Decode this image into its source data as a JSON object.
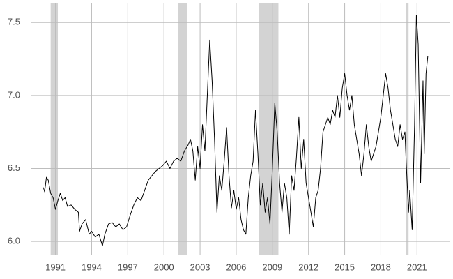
{
  "chart_data": {
    "type": "line",
    "color": "#000000",
    "grid": true,
    "shaded_periods": [
      [
        1990.6,
        1991.2
      ],
      [
        2001.2,
        2001.9
      ],
      [
        2007.9,
        2009.5
      ],
      [
        2020.1,
        2020.3
      ]
    ],
    "shade_color": "#d3d3d3",
    "xlim": [
      1989,
      2023.7
    ],
    "ylim": [
      5.91,
      7.63
    ],
    "xticks": [
      1991,
      1994,
      1997,
      2000,
      2003,
      2006,
      2009,
      2012,
      2015,
      2018,
      2021
    ],
    "yticks": [
      {
        "value": 6,
        "label": "6.0"
      },
      6.5,
      {
        "value": 7,
        "label": "7.0"
      },
      7.5
    ],
    "x": [
      1990.0,
      1990.1,
      1990.25,
      1990.4,
      1990.6,
      1990.8,
      1991.0,
      1991.2,
      1991.4,
      1991.6,
      1991.8,
      1992.0,
      1992.3,
      1992.6,
      1992.9,
      1993.0,
      1993.2,
      1993.5,
      1993.8,
      1994.0,
      1994.3,
      1994.6,
      1994.9,
      1995.1,
      1995.4,
      1995.7,
      1996.0,
      1996.3,
      1996.6,
      1996.9,
      1997.2,
      1997.5,
      1997.8,
      1998.1,
      1998.4,
      1998.7,
      1999.0,
      1999.3,
      1999.6,
      1999.9,
      2000.2,
      2000.5,
      2000.8,
      2001.1,
      2001.4,
      2001.7,
      2002.0,
      2002.2,
      2002.4,
      2002.6,
      2002.8,
      2003.0,
      2003.2,
      2003.4,
      2003.6,
      2003.8,
      2004.0,
      2004.2,
      2004.4,
      2004.6,
      2004.8,
      2005.0,
      2005.2,
      2005.4,
      2005.6,
      2005.8,
      2006.0,
      2006.2,
      2006.4,
      2006.6,
      2006.8,
      2007.0,
      2007.2,
      2007.4,
      2007.6,
      2007.8,
      2008.0,
      2008.2,
      2008.4,
      2008.6,
      2008.8,
      2009.0,
      2009.2,
      2009.4,
      2009.6,
      2009.8,
      2010.0,
      2010.2,
      2010.4,
      2010.6,
      2010.8,
      2011.0,
      2011.2,
      2011.4,
      2011.6,
      2011.8,
      2012.0,
      2012.2,
      2012.4,
      2012.6,
      2012.8,
      2013.0,
      2013.2,
      2013.4,
      2013.6,
      2013.8,
      2014.0,
      2014.2,
      2014.4,
      2014.6,
      2014.8,
      2015.0,
      2015.2,
      2015.4,
      2015.6,
      2015.8,
      2016.0,
      2016.2,
      2016.4,
      2016.6,
      2016.8,
      2017.0,
      2017.2,
      2017.4,
      2017.6,
      2017.8,
      2018.0,
      2018.2,
      2018.4,
      2018.6,
      2018.8,
      2019.0,
      2019.2,
      2019.4,
      2019.6,
      2019.8,
      2020.0,
      2020.1,
      2020.3,
      2020.4,
      2020.6,
      2020.8,
      2020.95,
      2021.1,
      2021.3,
      2021.5,
      2021.6,
      2021.75,
      2021.9
    ],
    "values": [
      6.37,
      6.34,
      6.44,
      6.42,
      6.33,
      6.3,
      6.22,
      6.28,
      6.33,
      6.28,
      6.3,
      6.24,
      6.25,
      6.22,
      6.2,
      6.07,
      6.12,
      6.15,
      6.05,
      6.07,
      6.03,
      6.05,
      5.97,
      6.05,
      6.12,
      6.13,
      6.1,
      6.12,
      6.08,
      6.1,
      6.18,
      6.25,
      6.3,
      6.28,
      6.35,
      6.42,
      6.45,
      6.48,
      6.5,
      6.52,
      6.55,
      6.5,
      6.55,
      6.57,
      6.55,
      6.62,
      6.66,
      6.7,
      6.62,
      6.42,
      6.65,
      6.5,
      6.8,
      6.62,
      7.0,
      7.38,
      7.1,
      6.7,
      6.2,
      6.45,
      6.35,
      6.55,
      6.78,
      6.45,
      6.23,
      6.35,
      6.22,
      6.3,
      6.15,
      6.08,
      6.05,
      6.3,
      6.45,
      6.55,
      6.9,
      6.6,
      6.25,
      6.4,
      6.2,
      6.3,
      6.12,
      6.5,
      6.95,
      6.75,
      6.4,
      6.2,
      6.4,
      6.3,
      6.05,
      6.45,
      6.35,
      6.58,
      6.85,
      6.5,
      6.7,
      6.4,
      6.3,
      6.2,
      6.1,
      6.3,
      6.35,
      6.5,
      6.75,
      6.8,
      6.85,
      6.8,
      6.9,
      6.85,
      7.0,
      6.85,
      7.05,
      7.15,
      7.0,
      6.9,
      7.0,
      6.8,
      6.7,
      6.6,
      6.45,
      6.6,
      6.8,
      6.65,
      6.55,
      6.6,
      6.65,
      6.75,
      6.85,
      7.0,
      7.15,
      7.05,
      6.9,
      6.8,
      6.7,
      6.65,
      6.8,
      6.7,
      6.75,
      6.55,
      6.2,
      6.35,
      6.08,
      6.8,
      7.55,
      7.35,
      6.4,
      7.1,
      6.6,
      7.15,
      7.27
    ]
  }
}
